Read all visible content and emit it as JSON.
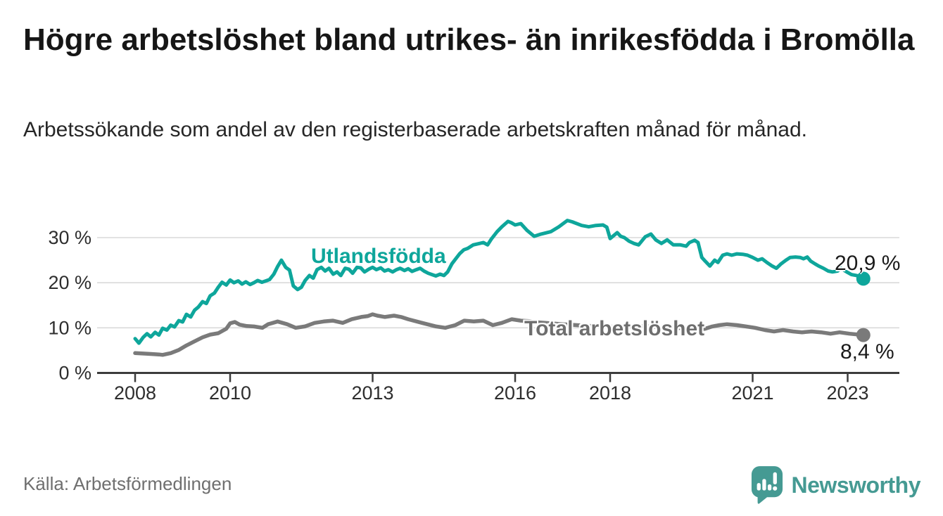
{
  "header": {
    "title": "Högre arbetslöshet bland utrikes- än inrikesfödda i Bromölla",
    "subtitle": "Arbetssökande som andel av den registerbaserade arbetskraften månad för månad."
  },
  "footer": {
    "source": "Källa: Arbetsförmedlingen",
    "logo_text": "Newsworthy"
  },
  "colors": {
    "teal_line": "#0ea69b",
    "gray_line": "#7a7a7a",
    "gray_label": "#6e6e6e",
    "axis": "#3c3c3c",
    "grid": "#d9d9d9",
    "tick_text": "#2e2e2e",
    "end_label_text": "#1a1a1a",
    "logo_teal": "#459a93"
  },
  "chart_data": {
    "type": "line",
    "title": "Högre arbetslöshet bland utrikes- än inrikesfödda i Bromölla",
    "subtitle": "Arbetssökande som andel av den registerbaserade arbetskraften månad för månad.",
    "xlabel": "",
    "ylabel": "",
    "grid": "horizontal",
    "legend_position": "inline-labels",
    "x_axis": {
      "ticks": [
        2008,
        2010,
        2013,
        2016,
        2018,
        2021,
        2023
      ],
      "range": [
        2007.2,
        2024.1
      ]
    },
    "y_axis": {
      "ticks": [
        0,
        10,
        20,
        30
      ],
      "tick_suffix": " %",
      "range": [
        0,
        35
      ]
    },
    "series": [
      {
        "name": "Utlandsfödda",
        "label_text": "Utlandsfödda",
        "end_label": "20,9 %",
        "end_value": 20.9,
        "color_key": "teal_line",
        "points": [
          [
            2008.0,
            7.6
          ],
          [
            2008.08,
            6.6
          ],
          [
            2008.17,
            7.9
          ],
          [
            2008.25,
            8.7
          ],
          [
            2008.33,
            8.0
          ],
          [
            2008.42,
            9.0
          ],
          [
            2008.5,
            8.4
          ],
          [
            2008.58,
            9.9
          ],
          [
            2008.67,
            9.5
          ],
          [
            2008.75,
            10.6
          ],
          [
            2008.83,
            10.2
          ],
          [
            2008.92,
            11.6
          ],
          [
            2009.0,
            11.3
          ],
          [
            2009.08,
            13.0
          ],
          [
            2009.17,
            12.4
          ],
          [
            2009.25,
            13.9
          ],
          [
            2009.33,
            14.6
          ],
          [
            2009.42,
            15.8
          ],
          [
            2009.5,
            15.4
          ],
          [
            2009.58,
            17.1
          ],
          [
            2009.67,
            17.7
          ],
          [
            2009.75,
            19.0
          ],
          [
            2009.83,
            20.1
          ],
          [
            2009.92,
            19.5
          ],
          [
            2010.0,
            20.6
          ],
          [
            2010.08,
            20.0
          ],
          [
            2010.17,
            20.4
          ],
          [
            2010.25,
            19.7
          ],
          [
            2010.33,
            20.2
          ],
          [
            2010.42,
            19.6
          ],
          [
            2010.5,
            20.0
          ],
          [
            2010.58,
            20.5
          ],
          [
            2010.67,
            20.1
          ],
          [
            2010.75,
            20.4
          ],
          [
            2010.83,
            20.7
          ],
          [
            2010.92,
            21.9
          ],
          [
            2011.0,
            23.6
          ],
          [
            2011.08,
            25.0
          ],
          [
            2011.17,
            23.4
          ],
          [
            2011.25,
            22.8
          ],
          [
            2011.33,
            19.3
          ],
          [
            2011.42,
            18.5
          ],
          [
            2011.5,
            19.0
          ],
          [
            2011.58,
            20.5
          ],
          [
            2011.67,
            21.6
          ],
          [
            2011.75,
            21.0
          ],
          [
            2011.83,
            22.9
          ],
          [
            2011.92,
            23.4
          ],
          [
            2012.0,
            22.6
          ],
          [
            2012.08,
            23.2
          ],
          [
            2012.17,
            21.9
          ],
          [
            2012.25,
            22.4
          ],
          [
            2012.33,
            21.6
          ],
          [
            2012.42,
            23.2
          ],
          [
            2012.5,
            23.0
          ],
          [
            2012.58,
            22.1
          ],
          [
            2012.67,
            23.4
          ],
          [
            2012.75,
            23.3
          ],
          [
            2012.83,
            22.4
          ],
          [
            2012.92,
            23.0
          ],
          [
            2013.0,
            23.4
          ],
          [
            2013.08,
            22.9
          ],
          [
            2013.17,
            23.3
          ],
          [
            2013.25,
            22.6
          ],
          [
            2013.33,
            22.9
          ],
          [
            2013.42,
            22.4
          ],
          [
            2013.5,
            22.9
          ],
          [
            2013.58,
            23.2
          ],
          [
            2013.67,
            22.7
          ],
          [
            2013.75,
            23.1
          ],
          [
            2013.83,
            22.5
          ],
          [
            2013.92,
            22.9
          ],
          [
            2014.0,
            23.2
          ],
          [
            2014.08,
            22.6
          ],
          [
            2014.17,
            22.1
          ],
          [
            2014.25,
            21.8
          ],
          [
            2014.33,
            21.5
          ],
          [
            2014.42,
            21.9
          ],
          [
            2014.5,
            21.6
          ],
          [
            2014.58,
            22.4
          ],
          [
            2014.67,
            24.2
          ],
          [
            2014.75,
            25.3
          ],
          [
            2014.83,
            26.4
          ],
          [
            2014.92,
            27.3
          ],
          [
            2015.0,
            27.6
          ],
          [
            2015.12,
            28.4
          ],
          [
            2015.25,
            28.7
          ],
          [
            2015.33,
            28.9
          ],
          [
            2015.42,
            28.4
          ],
          [
            2015.5,
            29.7
          ],
          [
            2015.62,
            31.3
          ],
          [
            2015.72,
            32.4
          ],
          [
            2015.85,
            33.6
          ],
          [
            2015.92,
            33.3
          ],
          [
            2016.0,
            32.8
          ],
          [
            2016.12,
            33.1
          ],
          [
            2016.25,
            31.6
          ],
          [
            2016.4,
            30.3
          ],
          [
            2016.55,
            30.8
          ],
          [
            2016.75,
            31.3
          ],
          [
            2016.92,
            32.4
          ],
          [
            2017.1,
            33.8
          ],
          [
            2017.2,
            33.5
          ],
          [
            2017.4,
            32.7
          ],
          [
            2017.55,
            32.4
          ],
          [
            2017.7,
            32.7
          ],
          [
            2017.85,
            32.8
          ],
          [
            2017.93,
            32.3
          ],
          [
            2018.0,
            29.8
          ],
          [
            2018.15,
            31.1
          ],
          [
            2018.22,
            30.3
          ],
          [
            2018.3,
            30.0
          ],
          [
            2018.4,
            29.2
          ],
          [
            2018.5,
            28.7
          ],
          [
            2018.6,
            28.4
          ],
          [
            2018.74,
            30.2
          ],
          [
            2018.86,
            30.8
          ],
          [
            2018.96,
            29.5
          ],
          [
            2019.08,
            28.7
          ],
          [
            2019.2,
            29.5
          ],
          [
            2019.33,
            28.4
          ],
          [
            2019.48,
            28.4
          ],
          [
            2019.6,
            28.1
          ],
          [
            2019.67,
            28.9
          ],
          [
            2019.78,
            29.4
          ],
          [
            2019.85,
            28.9
          ],
          [
            2019.93,
            25.6
          ],
          [
            2020.0,
            24.8
          ],
          [
            2020.1,
            23.7
          ],
          [
            2020.2,
            25.0
          ],
          [
            2020.27,
            24.5
          ],
          [
            2020.37,
            26.1
          ],
          [
            2020.46,
            26.4
          ],
          [
            2020.56,
            26.1
          ],
          [
            2020.67,
            26.4
          ],
          [
            2020.79,
            26.3
          ],
          [
            2020.89,
            26.1
          ],
          [
            2021.0,
            25.6
          ],
          [
            2021.11,
            25.0
          ],
          [
            2021.2,
            25.3
          ],
          [
            2021.3,
            24.5
          ],
          [
            2021.41,
            23.7
          ],
          [
            2021.5,
            23.2
          ],
          [
            2021.6,
            24.2
          ],
          [
            2021.7,
            25.0
          ],
          [
            2021.79,
            25.6
          ],
          [
            2021.9,
            25.7
          ],
          [
            2022.0,
            25.6
          ],
          [
            2022.07,
            25.3
          ],
          [
            2022.15,
            25.7
          ],
          [
            2022.22,
            24.8
          ],
          [
            2022.31,
            24.2
          ],
          [
            2022.39,
            23.7
          ],
          [
            2022.49,
            23.2
          ],
          [
            2022.59,
            22.6
          ],
          [
            2022.68,
            22.4
          ],
          [
            2022.79,
            22.6
          ],
          [
            2022.86,
            23.2
          ],
          [
            2022.98,
            22.4
          ],
          [
            2023.08,
            21.8
          ],
          [
            2023.19,
            21.6
          ],
          [
            2023.33,
            20.9
          ]
        ]
      },
      {
        "name": "Total arbetslöshet",
        "label_text": "Total arbetslöshet",
        "end_label": "8,4 %",
        "end_value": 8.4,
        "color_key": "gray_line",
        "points": [
          [
            2008.0,
            4.4
          ],
          [
            2008.17,
            4.3
          ],
          [
            2008.33,
            4.2
          ],
          [
            2008.5,
            4.1
          ],
          [
            2008.58,
            4.0
          ],
          [
            2008.75,
            4.4
          ],
          [
            2008.92,
            5.1
          ],
          [
            2009.08,
            6.1
          ],
          [
            2009.25,
            7.0
          ],
          [
            2009.42,
            7.9
          ],
          [
            2009.58,
            8.5
          ],
          [
            2009.75,
            8.8
          ],
          [
            2009.92,
            9.8
          ],
          [
            2010.0,
            11.0
          ],
          [
            2010.1,
            11.3
          ],
          [
            2010.2,
            10.7
          ],
          [
            2010.35,
            10.4
          ],
          [
            2010.5,
            10.3
          ],
          [
            2010.68,
            10.0
          ],
          [
            2010.8,
            10.8
          ],
          [
            2011.0,
            11.4
          ],
          [
            2011.2,
            10.8
          ],
          [
            2011.38,
            10.0
          ],
          [
            2011.57,
            10.3
          ],
          [
            2011.78,
            11.1
          ],
          [
            2011.97,
            11.4
          ],
          [
            2012.16,
            11.6
          ],
          [
            2012.37,
            11.1
          ],
          [
            2012.56,
            11.9
          ],
          [
            2012.76,
            12.4
          ],
          [
            2012.9,
            12.6
          ],
          [
            2013.0,
            13.0
          ],
          [
            2013.1,
            12.7
          ],
          [
            2013.26,
            12.4
          ],
          [
            2013.45,
            12.7
          ],
          [
            2013.6,
            12.4
          ],
          [
            2013.75,
            11.9
          ],
          [
            2014.04,
            11.1
          ],
          [
            2014.34,
            10.3
          ],
          [
            2014.53,
            10.0
          ],
          [
            2014.74,
            10.6
          ],
          [
            2014.93,
            11.6
          ],
          [
            2015.13,
            11.4
          ],
          [
            2015.33,
            11.6
          ],
          [
            2015.53,
            10.6
          ],
          [
            2015.72,
            11.1
          ],
          [
            2015.93,
            11.9
          ],
          [
            2016.12,
            11.6
          ],
          [
            2016.3,
            11.5
          ],
          [
            2016.5,
            11.2
          ],
          [
            2016.75,
            11.0
          ],
          [
            2017.0,
            10.8
          ],
          [
            2017.3,
            10.6
          ],
          [
            2017.6,
            10.4
          ],
          [
            2017.9,
            10.3
          ],
          [
            2018.2,
            10.2
          ],
          [
            2018.5,
            10.4
          ],
          [
            2018.8,
            10.3
          ],
          [
            2019.0,
            10.2
          ],
          [
            2019.3,
            10.0
          ],
          [
            2019.6,
            9.9
          ],
          [
            2019.85,
            9.6
          ],
          [
            2020.0,
            9.8
          ],
          [
            2020.15,
            10.3
          ],
          [
            2020.3,
            10.6
          ],
          [
            2020.46,
            10.8
          ],
          [
            2020.67,
            10.6
          ],
          [
            2020.86,
            10.3
          ],
          [
            2021.05,
            10.0
          ],
          [
            2021.26,
            9.5
          ],
          [
            2021.45,
            9.2
          ],
          [
            2021.64,
            9.5
          ],
          [
            2021.85,
            9.2
          ],
          [
            2022.04,
            9.0
          ],
          [
            2022.24,
            9.2
          ],
          [
            2022.44,
            9.0
          ],
          [
            2022.64,
            8.7
          ],
          [
            2022.83,
            9.0
          ],
          [
            2023.04,
            8.7
          ],
          [
            2023.33,
            8.4
          ]
        ]
      }
    ]
  }
}
